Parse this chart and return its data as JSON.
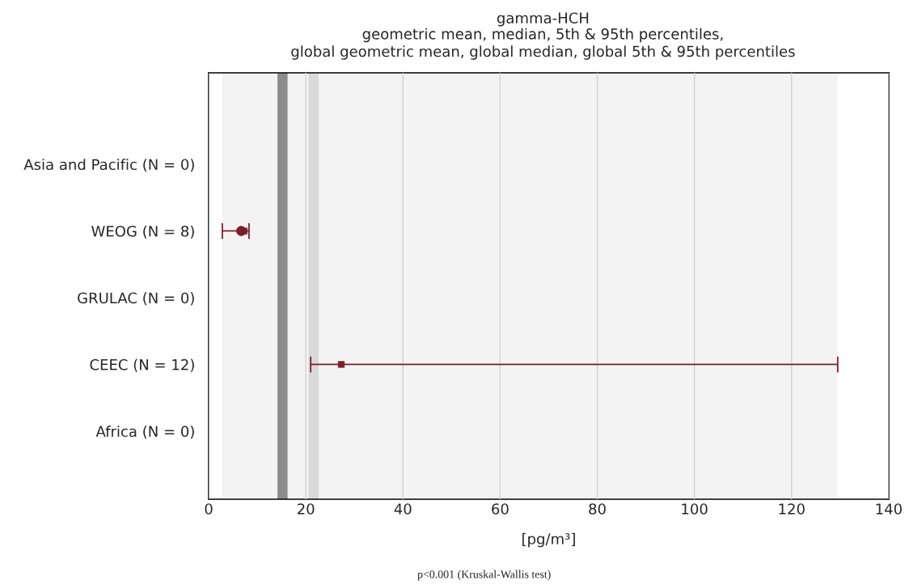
{
  "chart_data": {
    "type": "scatter",
    "orientation": "horizontal",
    "title": "gamma-HCH",
    "subtitle": "geometric mean, median, 5th & 95th percentiles,\nglobal geometric mean, global median, global 5th & 95th percentiles",
    "xlabel": "[pg/m³]",
    "categories": [
      "Asia and Pacific (N = 0)",
      "WEOG (N = 8)",
      "GRULAC (N = 0)",
      "CEEC (N = 12)",
      "Africa (N = 0)"
    ],
    "series": [
      {
        "marker": "circle",
        "color": "#7a1f2b",
        "values": [
          null,
          6.7,
          null,
          null,
          null
        ]
      },
      {
        "marker": "square",
        "color": "#7a1f2b",
        "values": [
          null,
          7.3,
          null,
          27.3,
          null
        ],
        "errors": [
          null,
          [
            2.8,
            8.3
          ],
          null,
          [
            21.0,
            129.5
          ],
          null
        ]
      }
    ],
    "xlim": [
      0,
      140
    ],
    "xticks": [
      0,
      20,
      40,
      60,
      80,
      100,
      120,
      140
    ],
    "grid": "x",
    "bands": [
      {
        "axis": "x",
        "from": 2.8,
        "to": 129.5,
        "color": "#f3f3f3"
      }
    ],
    "ref_lines": [
      {
        "axis": "x",
        "value": 15.2,
        "color": "#8c8c8c"
      },
      {
        "axis": "x",
        "value": 21.6,
        "color": "#d9d9d9"
      }
    ],
    "annotations": [
      "p<0.001 (Kruskal-Wallis test)"
    ]
  }
}
